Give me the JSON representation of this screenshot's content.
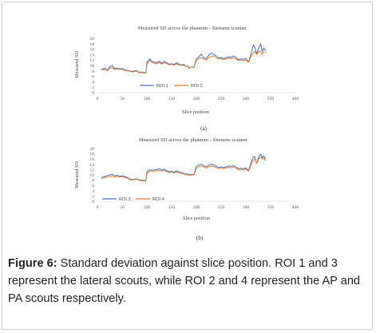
{
  "charts": [
    {
      "title": "Measured SD across the phantom - Siemens scanner",
      "ylabel": "Measured SD",
      "xlabel": "Slice position",
      "panel": "(a)",
      "legend": [
        {
          "name": "ROI 1",
          "color": "#4472C4"
        },
        {
          "name": "ROI 2",
          "color": "#ED7D31"
        }
      ]
    },
    {
      "title": "Measured SD across the phantom - Siemens scanner",
      "ylabel": "Measured SD",
      "xlabel": "Slice position",
      "panel": "(b)",
      "legend": [
        {
          "name": "ROI 3",
          "color": "#4472C4"
        },
        {
          "name": "ROI 4",
          "color": "#ED7D31"
        }
      ]
    }
  ],
  "caption": {
    "label": "Figure 6:",
    "text": " Standard deviation against slice position. ROI 1 and 3 represent the lateral scouts, while ROI 2 and 4 represent the AP and PA scouts respectively."
  },
  "chart_data": [
    {
      "type": "line",
      "title": "Measured SD across the phantom - Siemens scanner",
      "xlabel": "Slice position",
      "ylabel": "Measured SD",
      "xlim": [
        0,
        400
      ],
      "ylim": [
        0,
        20
      ],
      "xticks": [
        0,
        50,
        100,
        150,
        200,
        250,
        300,
        350,
        400
      ],
      "yticks": [
        0,
        2,
        4,
        6,
        8,
        10,
        12,
        14,
        16,
        18,
        20
      ],
      "legend_position": "bottom-center",
      "series": [
        {
          "name": "ROI 1",
          "color": "#4472C4",
          "x": [
            8,
            15,
            20,
            25,
            30,
            35,
            40,
            45,
            50,
            55,
            60,
            65,
            70,
            75,
            80,
            85,
            90,
            95,
            98,
            100,
            103,
            106,
            110,
            115,
            120,
            125,
            130,
            135,
            140,
            145,
            150,
            155,
            160,
            165,
            170,
            175,
            180,
            182,
            185,
            190,
            195,
            200,
            205,
            210,
            215,
            220,
            225,
            230,
            235,
            240,
            245,
            250,
            255,
            260,
            265,
            270,
            275,
            280,
            285,
            290,
            295,
            300,
            303,
            306,
            310,
            315,
            318,
            320,
            322,
            325,
            328,
            330,
            333,
            336,
            340
          ],
          "y": [
            8.5,
            9,
            8.3,
            9.5,
            10,
            8.8,
            9.1,
            8.7,
            8.9,
            8.4,
            8.2,
            8,
            7.8,
            8,
            8.1,
            7.5,
            7.6,
            7.4,
            7.2,
            11.2,
            11.8,
            12.5,
            11.5,
            11.2,
            11,
            11.6,
            10.8,
            11.5,
            11,
            10.5,
            10.6,
            10.4,
            11,
            10.5,
            10.2,
            10.4,
            9.5,
            10,
            9,
            9.5,
            9.4,
            12.4,
            13.2,
            14.2,
            12.8,
            12.5,
            13.8,
            14.5,
            14.1,
            13.5,
            12.8,
            12.9,
            12.6,
            12.8,
            13.2,
            13,
            13.5,
            12.9,
            12.2,
            12.4,
            12.3,
            12.6,
            11.8,
            11.5,
            14,
            17.6,
            16.8,
            15.2,
            14.5,
            16,
            17.2,
            18,
            15,
            16.5,
            15.5
          ]
        },
        {
          "name": "ROI 2",
          "color": "#ED7D31",
          "x": [
            8,
            15,
            20,
            25,
            30,
            35,
            40,
            45,
            50,
            55,
            60,
            65,
            70,
            75,
            80,
            85,
            90,
            95,
            98,
            100,
            103,
            106,
            110,
            115,
            120,
            125,
            130,
            135,
            140,
            145,
            150,
            155,
            160,
            165,
            170,
            175,
            180,
            182,
            185,
            190,
            195,
            200,
            205,
            210,
            215,
            220,
            225,
            230,
            235,
            240,
            245,
            250,
            255,
            260,
            265,
            270,
            275,
            280,
            285,
            290,
            295,
            300,
            303,
            306,
            310,
            315,
            318,
            320,
            322,
            325,
            328,
            330,
            333,
            336,
            340
          ],
          "y": [
            8.3,
            8.6,
            8.1,
            9,
            9.2,
            8.5,
            8.8,
            8.5,
            8.6,
            8.2,
            8,
            7.9,
            7.6,
            7.8,
            7.9,
            7.3,
            7.4,
            7.2,
            7.1,
            10.5,
            11.2,
            11.8,
            11.2,
            10.8,
            10.6,
            11.1,
            10.5,
            11,
            10.7,
            10.2,
            10.4,
            10.1,
            10.6,
            10.2,
            10,
            10.1,
            9.6,
            9.8,
            9.2,
            9.4,
            9.2,
            11.8,
            12.6,
            12.9,
            12.3,
            12,
            13,
            13.2,
            13.5,
            12.8,
            12.5,
            12.4,
            12.2,
            12.4,
            12.7,
            12.5,
            12.8,
            12.4,
            11.9,
            12,
            11.8,
            12.1,
            11.5,
            11.2,
            13.2,
            14.6,
            15.2,
            14.4,
            14,
            15,
            15.4,
            14.8,
            14.2,
            15,
            14.8
          ]
        }
      ]
    },
    {
      "type": "line",
      "title": "Measured SD across the phantom - Siemens scanner",
      "xlabel": "Slice position",
      "ylabel": "Measured SD",
      "xlim": [
        0,
        400
      ],
      "ylim": [
        0,
        20
      ],
      "xticks": [
        0,
        50,
        100,
        150,
        200,
        250,
        300,
        350,
        400
      ],
      "yticks": [
        0,
        2,
        4,
        6,
        8,
        10,
        12,
        14,
        16,
        18,
        20
      ],
      "legend_position": "bottom-left",
      "series": [
        {
          "name": "ROI 3",
          "color": "#4472C4",
          "x": [
            8,
            15,
            20,
            25,
            30,
            35,
            40,
            45,
            50,
            55,
            60,
            65,
            70,
            75,
            80,
            85,
            90,
            95,
            98,
            100,
            103,
            106,
            110,
            115,
            120,
            125,
            130,
            135,
            140,
            145,
            150,
            155,
            160,
            165,
            170,
            175,
            180,
            182,
            185,
            190,
            195,
            200,
            205,
            210,
            215,
            220,
            225,
            230,
            235,
            240,
            245,
            250,
            255,
            260,
            265,
            270,
            275,
            280,
            285,
            290,
            295,
            300,
            303,
            306,
            310,
            315,
            318,
            320,
            322,
            325,
            328,
            330,
            333,
            336,
            340
          ],
          "y": [
            9,
            9.4,
            9.8,
            10,
            10.2,
            9.6,
            9.9,
            9.5,
            9.6,
            9.4,
            9.1,
            8.5,
            8.2,
            8.4,
            8.5,
            8.1,
            7.9,
            7.9,
            7.8,
            11.2,
            11.6,
            12,
            11.8,
            11.9,
            12,
            12.4,
            11.8,
            12.2,
            11.6,
            11.2,
            11.4,
            11,
            11.5,
            11.2,
            10.8,
            10.6,
            10.2,
            10.4,
            10,
            10.2,
            10.1,
            13.2,
            13.8,
            14,
            13.5,
            13.1,
            13.8,
            14,
            13.8,
            13.2,
            12.8,
            13,
            12.8,
            13,
            13.4,
            13.2,
            13.5,
            13,
            12.4,
            12.5,
            12.3,
            12.6,
            12,
            11.9,
            14.5,
            16.8,
            17,
            15.2,
            14.4,
            16.5,
            17.5,
            17.8,
            16.5,
            17.2,
            16
          ]
        },
        {
          "name": "ROI 4",
          "color": "#ED7D31",
          "x": [
            8,
            15,
            20,
            25,
            30,
            35,
            40,
            45,
            50,
            55,
            60,
            65,
            70,
            75,
            80,
            85,
            90,
            95,
            98,
            100,
            103,
            106,
            110,
            115,
            120,
            125,
            130,
            135,
            140,
            145,
            150,
            155,
            160,
            165,
            170,
            175,
            180,
            182,
            185,
            190,
            195,
            200,
            205,
            210,
            215,
            220,
            225,
            230,
            235,
            240,
            245,
            250,
            255,
            260,
            265,
            270,
            275,
            280,
            285,
            290,
            295,
            300,
            303,
            306,
            310,
            315,
            318,
            320,
            322,
            325,
            328,
            330,
            333,
            336,
            340
          ],
          "y": [
            8.5,
            9,
            9.2,
            9.4,
            9.6,
            9.1,
            9.4,
            9.2,
            9.3,
            9,
            8.8,
            8.3,
            8,
            8.2,
            8.3,
            7.9,
            7.7,
            7.7,
            7.6,
            10.5,
            11,
            11.4,
            11.3,
            11.4,
            11.5,
            11.8,
            11.4,
            11.7,
            11.2,
            10.9,
            11,
            10.7,
            11.1,
            10.8,
            10.5,
            10.4,
            10,
            10.1,
            9.8,
            10,
            9.9,
            12.5,
            13.1,
            13.4,
            13,
            12.6,
            13.2,
            13.3,
            13.2,
            12.8,
            12.4,
            12.5,
            12.4,
            12.6,
            12.9,
            12.7,
            13,
            12.5,
            12,
            12.1,
            12,
            12.2,
            11.7,
            11.5,
            13.6,
            15.6,
            16,
            15,
            14.2,
            15.8,
            16.6,
            17,
            15.9,
            16.4,
            15.4
          ]
        }
      ]
    }
  ]
}
